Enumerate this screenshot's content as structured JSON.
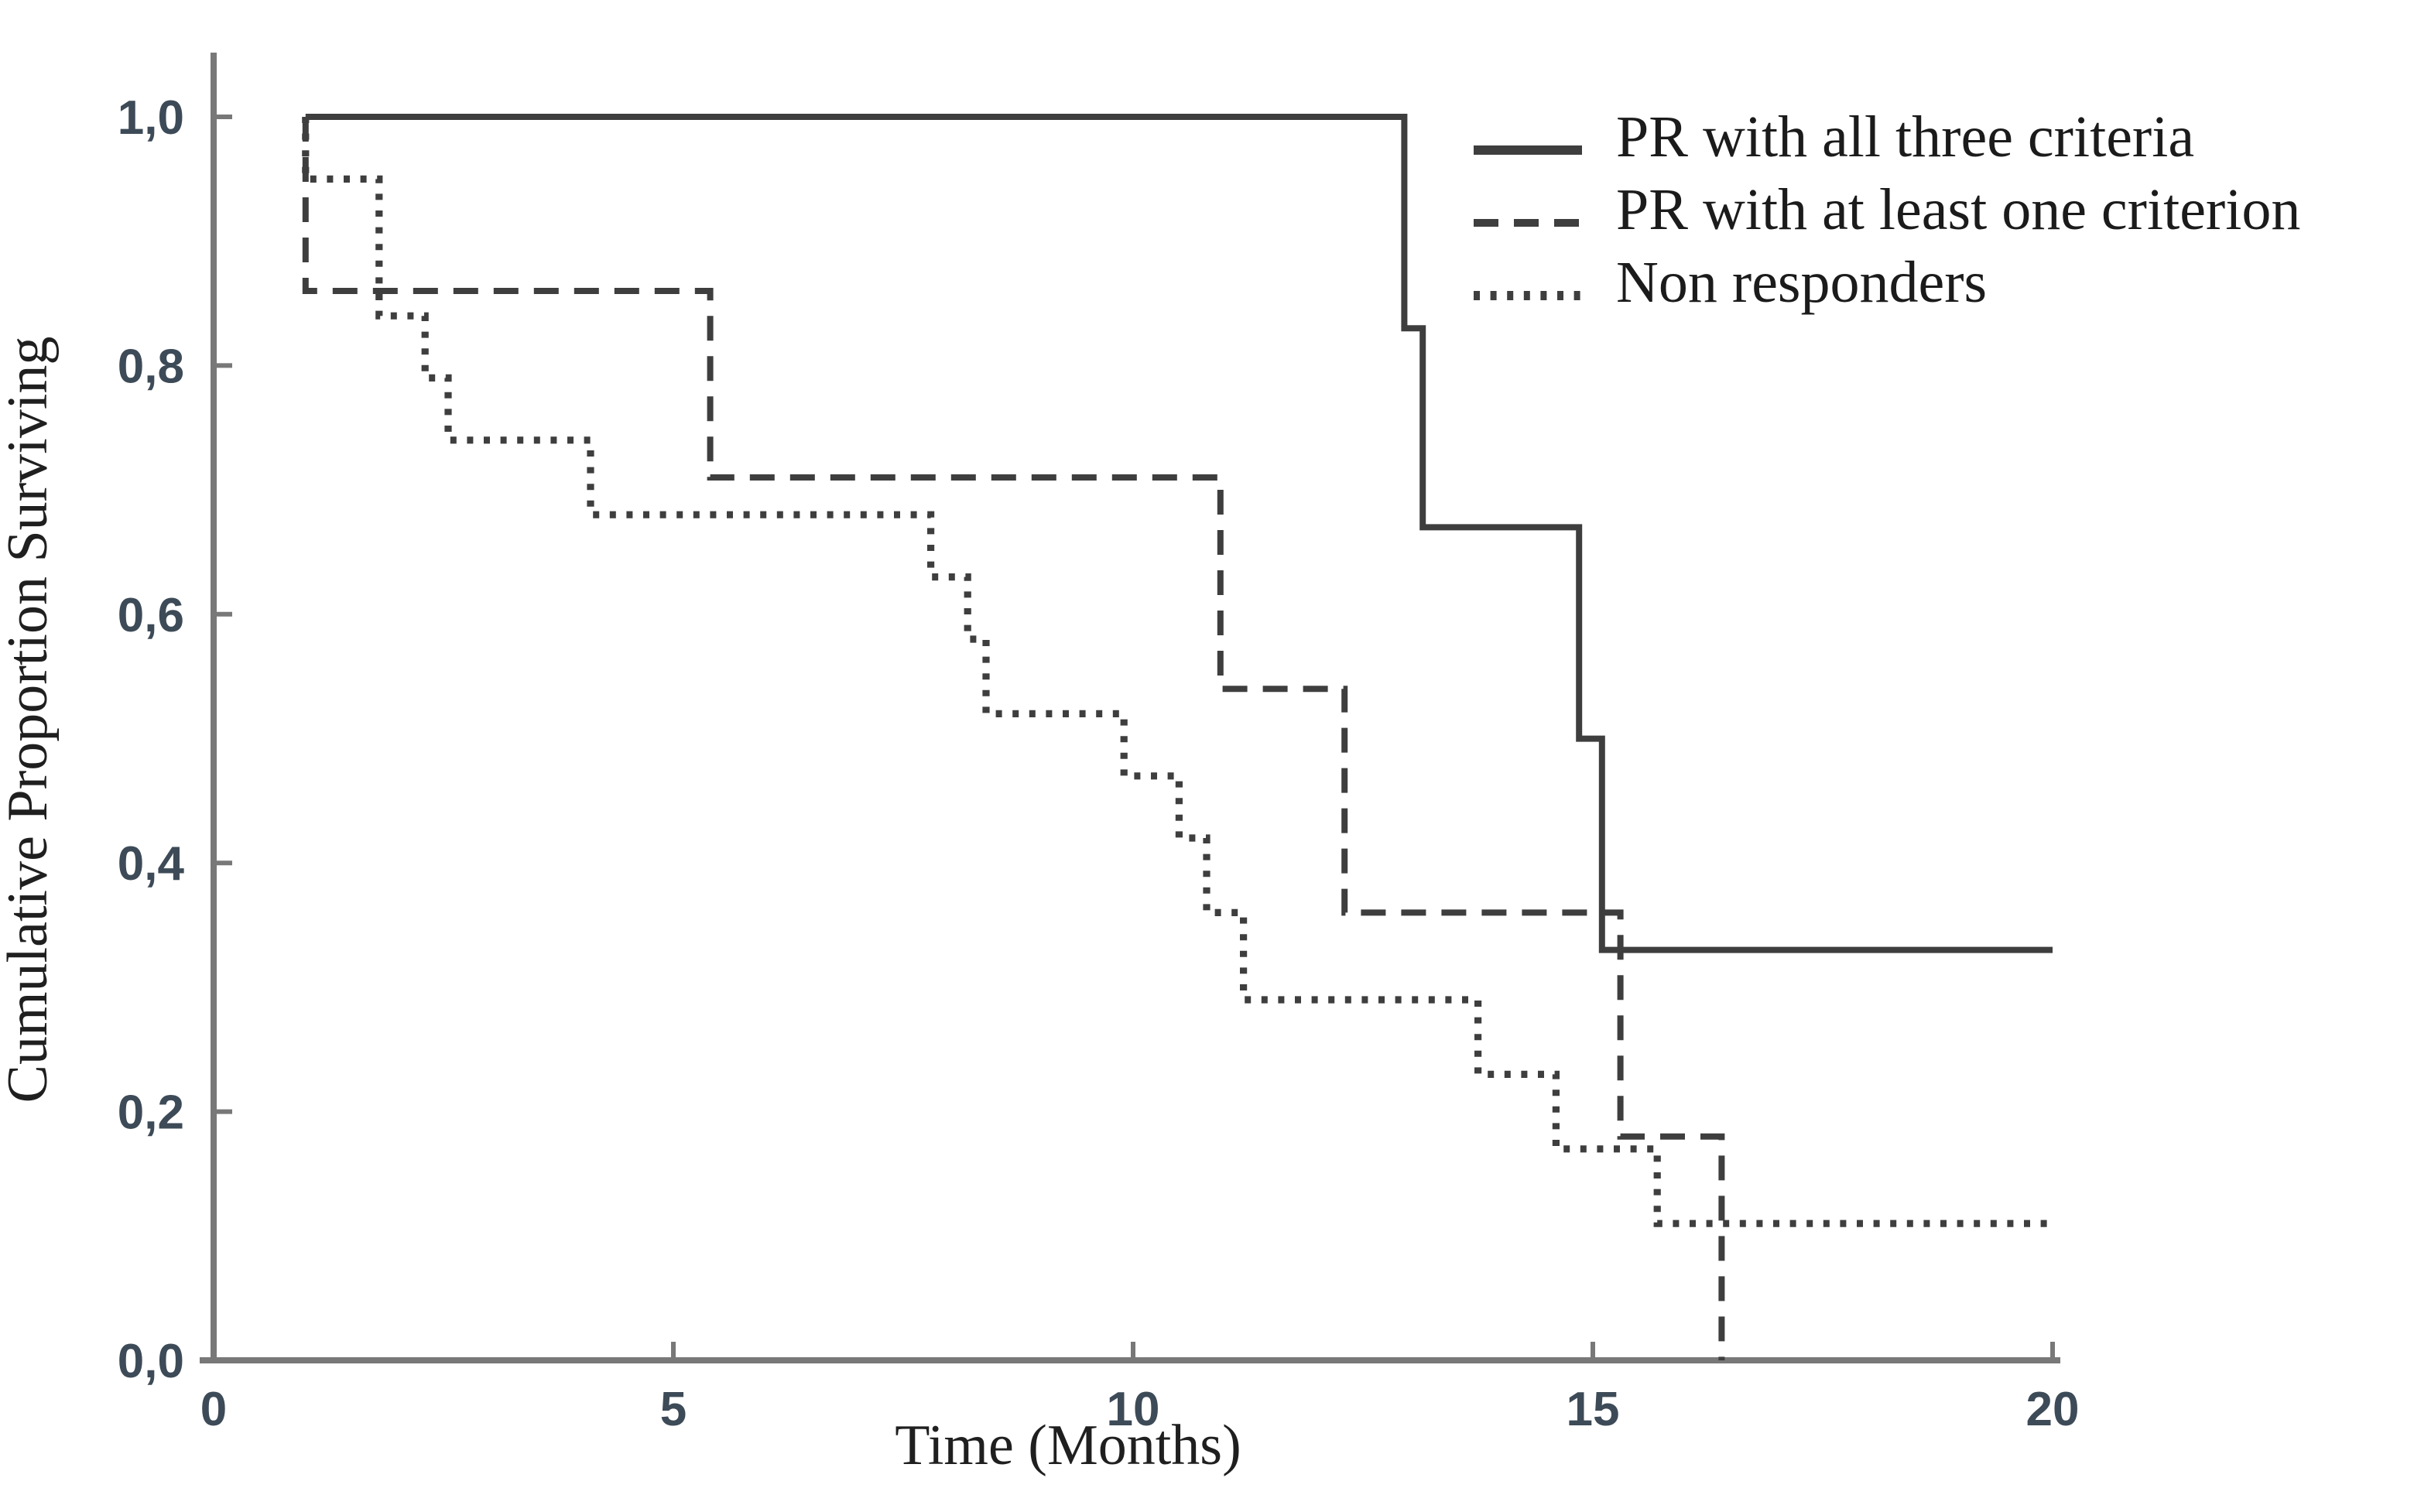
{
  "page": {
    "background": "#ffffff"
  },
  "colors": {
    "curve": "#3e3e3e",
    "axis": "#787878",
    "tick_label": "#3d4a57",
    "axis_title": "#1f1f1f",
    "legend_text": "#1b1b1b"
  },
  "chart_data": {
    "type": "line",
    "subtype": "kaplan_meier_step",
    "title": "",
    "xlabel": "Time (Months)",
    "ylabel": "Cumulative Proportion Surviving",
    "xlim": [
      0,
      20
    ],
    "ylim": [
      0,
      1
    ],
    "x_ticks": [
      0,
      5,
      10,
      15,
      20
    ],
    "x_tick_labels": [
      "0",
      "5",
      "10",
      "15",
      "20"
    ],
    "y_ticks": [
      0,
      0.2,
      0.4,
      0.6,
      0.8,
      1.0
    ],
    "y_tick_labels": [
      "0,0",
      "0,2",
      "0,4",
      "0,6",
      "0,8",
      "1,0"
    ],
    "decimal_separator": ",",
    "grid": false,
    "legend_position": "top-right",
    "series": [
      {
        "name": "PR with all three criteria",
        "style": "solid",
        "points": [
          [
            1,
            1.0
          ],
          [
            12.95,
            1.0
          ],
          [
            12.95,
            0.83
          ],
          [
            13.15,
            0.83
          ],
          [
            13.15,
            0.67
          ],
          [
            14.85,
            0.67
          ],
          [
            14.85,
            0.5
          ],
          [
            15.1,
            0.5
          ],
          [
            15.1,
            0.33
          ],
          [
            20,
            0.33
          ]
        ]
      },
      {
        "name": "PR with at least one criterion",
        "style": "dashed",
        "points": [
          [
            1,
            1.0
          ],
          [
            1,
            0.86
          ],
          [
            5.4,
            0.86
          ],
          [
            5.4,
            0.71
          ],
          [
            10.95,
            0.71
          ],
          [
            10.95,
            0.54
          ],
          [
            12.3,
            0.54
          ],
          [
            12.3,
            0.36
          ],
          [
            15.3,
            0.36
          ],
          [
            15.3,
            0.18
          ],
          [
            16.4,
            0.18
          ],
          [
            16.4,
            0.0
          ]
        ]
      },
      {
        "name": "Non responders",
        "style": "dotted",
        "points": [
          [
            1,
            1.0
          ],
          [
            1,
            0.95
          ],
          [
            1.8,
            0.95
          ],
          [
            1.8,
            0.84
          ],
          [
            2.3,
            0.84
          ],
          [
            2.3,
            0.79
          ],
          [
            2.55,
            0.79
          ],
          [
            2.55,
            0.74
          ],
          [
            4.1,
            0.74
          ],
          [
            4.1,
            0.68
          ],
          [
            7.8,
            0.68
          ],
          [
            7.8,
            0.63
          ],
          [
            8.2,
            0.63
          ],
          [
            8.2,
            0.58
          ],
          [
            8.4,
            0.58
          ],
          [
            8.4,
            0.52
          ],
          [
            9.9,
            0.52
          ],
          [
            9.9,
            0.47
          ],
          [
            10.5,
            0.47
          ],
          [
            10.5,
            0.42
          ],
          [
            10.8,
            0.42
          ],
          [
            10.8,
            0.36
          ],
          [
            11.2,
            0.36
          ],
          [
            11.2,
            0.29
          ],
          [
            13.75,
            0.29
          ],
          [
            13.75,
            0.23
          ],
          [
            14.6,
            0.23
          ],
          [
            14.6,
            0.17
          ],
          [
            15.7,
            0.17
          ],
          [
            15.7,
            0.11
          ],
          [
            20,
            0.11
          ]
        ]
      }
    ]
  }
}
